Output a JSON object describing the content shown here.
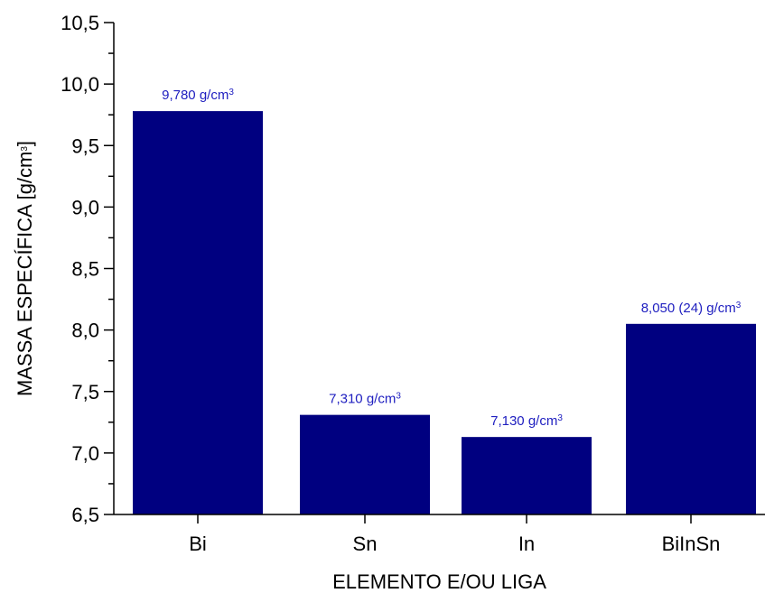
{
  "chart_data": {
    "type": "bar",
    "categories": [
      "Bi",
      "Sn",
      "In",
      "BiInSn"
    ],
    "values": [
      9.78,
      7.31,
      7.13,
      8.05
    ],
    "data_labels": [
      {
        "main": "9,780 g/cm",
        "sup": "3"
      },
      {
        "main": "7,310 g/cm",
        "sup": "3"
      },
      {
        "main": "7,130 g/cm",
        "sup": "3"
      },
      {
        "main": "8,050 (24) g/cm",
        "sup": "3"
      }
    ],
    "ylim": [
      6.5,
      10.5
    ],
    "yticks": [
      6.5,
      7.0,
      7.5,
      8.0,
      8.5,
      9.0,
      9.5,
      10.0,
      10.5
    ],
    "ytick_labels": [
      "6,5",
      "7,0",
      "7,5",
      "8,0",
      "8,5",
      "9,0",
      "9,5",
      "10,0",
      "10,5"
    ],
    "xlabel": "ELEMENTO E/OU LIGA",
    "ylabel": {
      "main": "MASSA ESPECÍFICA [g/cm",
      "sup": "3",
      "end": "]"
    },
    "grid": false,
    "bar_color": "#000080",
    "label_color": "#2020c0"
  }
}
